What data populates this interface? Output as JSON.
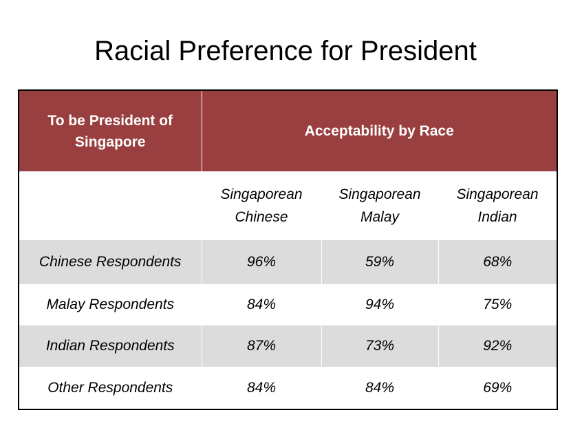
{
  "title": "Racial Preference for President",
  "header": {
    "row_label": "To be President of Singapore",
    "group": "Acceptability by Race"
  },
  "columns": [
    "Singaporean Chinese",
    "Singaporean Malay",
    "Singaporean Indian"
  ],
  "rows": [
    {
      "label": "Chinese Respondents",
      "values": [
        "96%",
        "59%",
        "68%"
      ]
    },
    {
      "label": "Malay Respondents",
      "values": [
        "84%",
        "94%",
        "75%"
      ]
    },
    {
      "label": "Indian Respondents",
      "values": [
        "87%",
        "73%",
        "92%"
      ]
    },
    {
      "label": "Other Respondents",
      "values": [
        "84%",
        "84%",
        "69%"
      ]
    }
  ],
  "colors": {
    "header": "#9a3f3f",
    "stripe": "#dcdcdc"
  }
}
